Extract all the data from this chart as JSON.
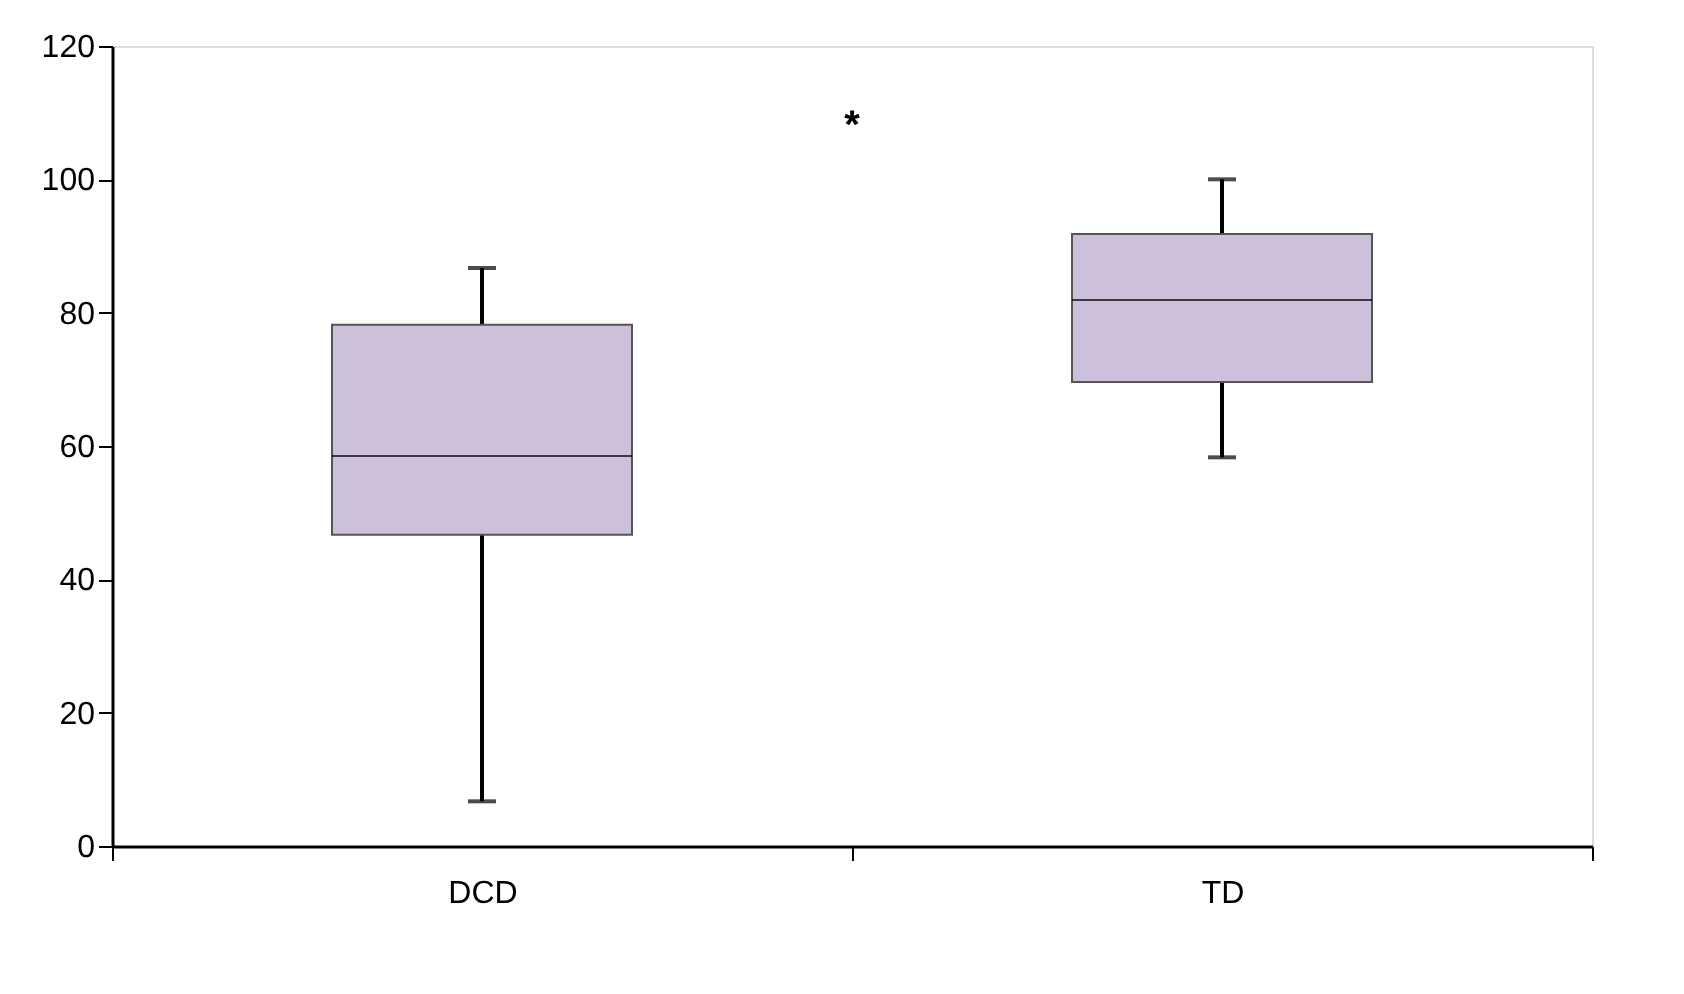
{
  "chart_data": {
    "type": "box",
    "categories": [
      "DCD",
      "TD"
    ],
    "color": "#ccc0da",
    "boxes": [
      {
        "low": 6.7,
        "q1": 46.7,
        "median": 58.5,
        "q3": 78.2,
        "high": 86.7
      },
      {
        "low": 58.3,
        "q1": 69.6,
        "median": 81.9,
        "q3": 91.8,
        "high": 100
      }
    ],
    "ylim": [
      0,
      120
    ],
    "yticks": [
      0,
      20,
      40,
      60,
      80,
      100,
      120
    ],
    "grid": false,
    "annotations": [
      "*"
    ]
  }
}
